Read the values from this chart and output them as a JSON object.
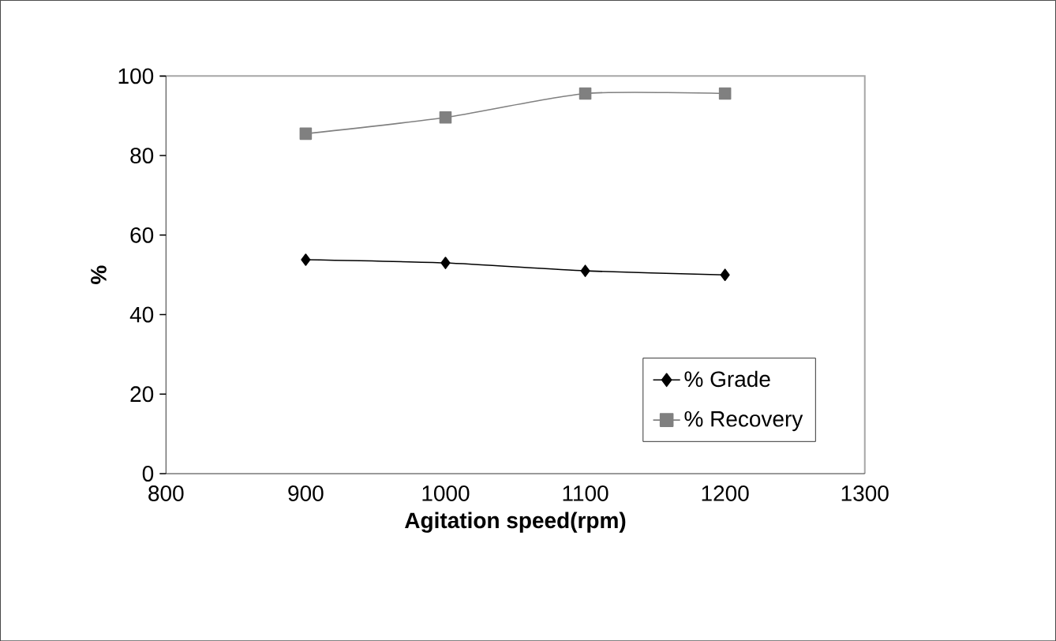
{
  "chart_data": {
    "type": "line",
    "xlabel": "Agitation speed(rpm)",
    "ylabel": "%",
    "x": [
      900,
      1000,
      1100,
      1200
    ],
    "series": [
      {
        "name": "% Grade",
        "color": "#000000",
        "marker": "diamond",
        "values": [
          53.8,
          53,
          51,
          50
        ]
      },
      {
        "name": "% Recovery",
        "color": "#808080",
        "marker": "square",
        "values": [
          85.5,
          89.6,
          95.6,
          95.6
        ]
      }
    ],
    "xlim": [
      800,
      1300
    ],
    "xticks": [
      800,
      900,
      1000,
      1100,
      1200,
      1300
    ],
    "ylim": [
      0,
      100
    ],
    "yticks": [
      0,
      20,
      40,
      60,
      80,
      100
    ],
    "grid": false,
    "legend": "bottom right",
    "line_style": "solid"
  }
}
